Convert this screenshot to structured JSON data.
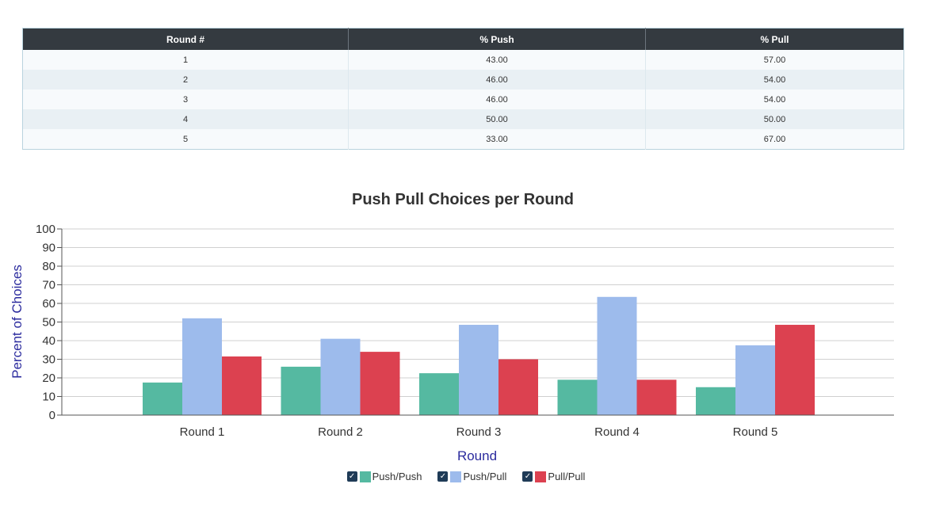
{
  "table": {
    "headers": [
      "Round #",
      "% Push",
      "% Pull"
    ],
    "rows": [
      [
        "1",
        "43.00",
        "57.00"
      ],
      [
        "2",
        "46.00",
        "54.00"
      ],
      [
        "3",
        "46.00",
        "54.00"
      ],
      [
        "4",
        "50.00",
        "50.00"
      ],
      [
        "5",
        "33.00",
        "67.00"
      ]
    ]
  },
  "chart_data": {
    "type": "bar",
    "title": "Push Pull Choices per Round",
    "xlabel": "Round",
    "ylabel": "Percent of Choices",
    "categories": [
      "Round 1",
      "Round 2",
      "Round 3",
      "Round 4",
      "Round 5"
    ],
    "series": [
      {
        "name": "Push/Push",
        "color": "#55b9a1",
        "values": [
          17.5,
          26,
          22.5,
          19,
          15
        ]
      },
      {
        "name": "Push/Pull",
        "color": "#9dbbec",
        "values": [
          52,
          41,
          48.5,
          63.5,
          37.5
        ]
      },
      {
        "name": "Pull/Pull",
        "color": "#dc4150",
        "values": [
          31.5,
          34,
          30,
          19,
          48.5
        ]
      }
    ],
    "ylim": [
      0,
      100
    ],
    "yticks": [
      0,
      10,
      20,
      30,
      40,
      50,
      60,
      70,
      80,
      90,
      100
    ],
    "grid": true,
    "legend_position": "bottom"
  },
  "legend": {
    "items": [
      {
        "label": "Push/Push",
        "checked": true
      },
      {
        "label": "Push/Pull",
        "checked": true
      },
      {
        "label": "Pull/Pull",
        "checked": true
      }
    ],
    "check_glyph": "✓"
  }
}
